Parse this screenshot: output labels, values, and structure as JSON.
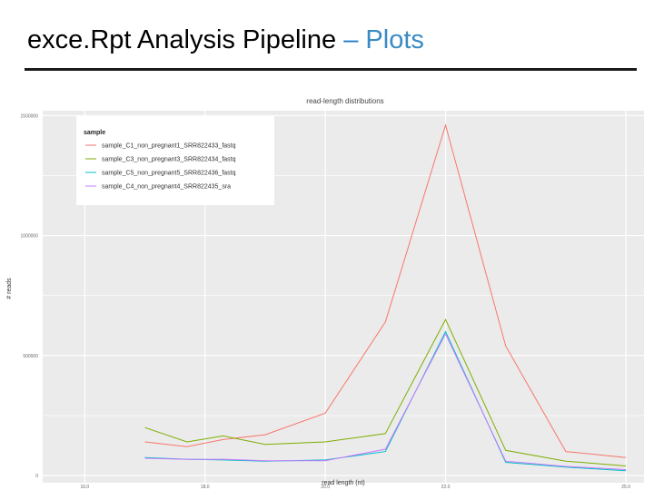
{
  "slide": {
    "title_main": "exce.Rpt Analysis Pipeline",
    "title_dash": "–",
    "title_accent": "Plots"
  },
  "colors": {
    "title_accent": "#3a8ac4",
    "panel_background": "#ebebeb",
    "gridline": "#ffffff"
  },
  "chart_data": {
    "type": "line",
    "title": "read-length distributions",
    "xlabel": "read length (nt)",
    "ylabel": "# reads",
    "xlim": [
      15.3,
      25.3
    ],
    "ylim": [
      -30000,
      1520000
    ],
    "x_ticks": [
      {
        "value": 16,
        "label": "16.0"
      },
      {
        "value": 18,
        "label": "18.0"
      },
      {
        "value": 20,
        "label": "20.0"
      },
      {
        "value": 22,
        "label": "22.0"
      },
      {
        "value": 25,
        "label": "25.0"
      }
    ],
    "y_ticks": [
      {
        "value": 0,
        "label": "0"
      },
      {
        "value": 500000,
        "label": "500000"
      },
      {
        "value": 1000000,
        "label": "1000000"
      },
      {
        "value": 1500000,
        "label": "1500000"
      }
    ],
    "grid": true,
    "legend_title": "sample",
    "legend_position": "top-left",
    "x": [
      17,
      17.7,
      18.3,
      19,
      20,
      21,
      22,
      23,
      24,
      25
    ],
    "series": [
      {
        "name": "sample_C1_non_pregnant1_SRR822433_fastq",
        "color": "#f8766d",
        "values": [
          140000,
          120000,
          150000,
          170000,
          260000,
          640000,
          1460000,
          540000,
          100000,
          75000
        ]
      },
      {
        "name": "sample_C3_non_pregnant3_SRR822434_fastq",
        "color": "#7cae00",
        "values": [
          200000,
          140000,
          165000,
          130000,
          140000,
          175000,
          650000,
          105000,
          60000,
          40000
        ]
      },
      {
        "name": "sample_C5_non_pregnant5_SRR822436_fastq",
        "color": "#00bfc4",
        "values": [
          75000,
          68000,
          65000,
          60000,
          65000,
          100000,
          600000,
          55000,
          35000,
          20000
        ]
      },
      {
        "name": "sample_C4_non_pregnant4_SRR822435_sra",
        "color": "#c77cff",
        "values": [
          72000,
          67000,
          68000,
          62000,
          62000,
          110000,
          590000,
          60000,
          38000,
          25000
        ]
      }
    ]
  }
}
